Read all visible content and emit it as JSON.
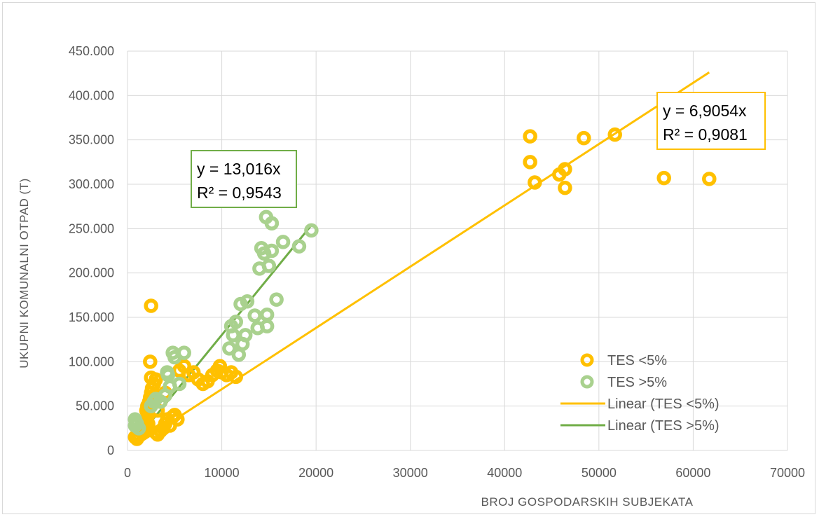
{
  "chart_data": {
    "type": "scatter",
    "title": "",
    "xlabel": "BROJ GOSPODARSKIH SUBJEKATA",
    "ylabel": "UKUPNI KOMUNALNI OTPAD (T)",
    "xlim": [
      0,
      70000
    ],
    "ylim": [
      0,
      450000
    ],
    "x_ticks": [
      0,
      10000,
      20000,
      30000,
      40000,
      50000,
      60000,
      70000
    ],
    "x_tick_labels": [
      "0",
      "10000",
      "20000",
      "30000",
      "40000",
      "50000",
      "60000",
      "70000"
    ],
    "y_ticks": [
      0,
      50000,
      100000,
      150000,
      200000,
      250000,
      300000,
      350000,
      400000,
      450000
    ],
    "y_tick_labels": [
      "0",
      "50.000",
      "100.000",
      "150.000",
      "200.000",
      "250.000",
      "300.000",
      "350.000",
      "400.000",
      "450.000"
    ],
    "grid": true,
    "legend_position": "bottom-right inside plot",
    "series": [
      {
        "name": "TES <5%",
        "color": "#ffc000",
        "points": [
          [
            800,
            15000
          ],
          [
            1000,
            13000
          ],
          [
            1200,
            17000
          ],
          [
            1500,
            20000
          ],
          [
            1800,
            22000
          ],
          [
            2000,
            25000
          ],
          [
            2200,
            30000
          ],
          [
            1600,
            28000
          ],
          [
            2000,
            35000
          ],
          [
            2200,
            40000
          ],
          [
            2000,
            45000
          ],
          [
            2100,
            50000
          ],
          [
            2300,
            55000
          ],
          [
            2400,
            60000
          ],
          [
            2500,
            65000
          ],
          [
            2600,
            70000
          ],
          [
            2800,
            75000
          ],
          [
            3000,
            80000
          ],
          [
            3200,
            45000
          ],
          [
            3000,
            20000
          ],
          [
            3200,
            18000
          ],
          [
            3500,
            22000
          ],
          [
            3800,
            25000
          ],
          [
            4000,
            30000
          ],
          [
            4200,
            35000
          ],
          [
            4500,
            28000
          ],
          [
            4800,
            38000
          ],
          [
            5000,
            40000
          ],
          [
            5300,
            35000
          ],
          [
            5500,
            90000
          ],
          [
            6000,
            95000
          ],
          [
            6500,
            85000
          ],
          [
            7000,
            88000
          ],
          [
            7500,
            80000
          ],
          [
            8000,
            75000
          ],
          [
            8500,
            78000
          ],
          [
            9000,
            85000
          ],
          [
            9500,
            90000
          ],
          [
            9800,
            95000
          ],
          [
            10000,
            88000
          ],
          [
            10500,
            85000
          ],
          [
            11000,
            88000
          ],
          [
            11500,
            83000
          ],
          [
            3500,
            55000
          ],
          [
            4000,
            65000
          ],
          [
            2500,
            82000
          ],
          [
            2400,
            100000
          ],
          [
            2500,
            163000
          ],
          [
            42700,
            354000
          ],
          [
            42700,
            325000
          ],
          [
            43200,
            302000
          ],
          [
            45800,
            311000
          ],
          [
            46400,
            317000
          ],
          [
            46400,
            296000
          ],
          [
            48400,
            352000
          ],
          [
            51700,
            356000
          ],
          [
            56900,
            307000
          ],
          [
            61700,
            306000
          ]
        ]
      },
      {
        "name": "TES >5%",
        "color": "#a9d18e",
        "points": [
          [
            800,
            28000
          ],
          [
            800,
            35000
          ],
          [
            900,
            32000
          ],
          [
            1000,
            30000
          ],
          [
            1200,
            25000
          ],
          [
            2500,
            50000
          ],
          [
            2800,
            55000
          ],
          [
            3000,
            58000
          ],
          [
            3500,
            55000
          ],
          [
            4000,
            62000
          ],
          [
            4200,
            88000
          ],
          [
            4300,
            85000
          ],
          [
            4500,
            72000
          ],
          [
            4800,
            110000
          ],
          [
            5000,
            105000
          ],
          [
            5500,
            75000
          ],
          [
            6000,
            110000
          ],
          [
            10800,
            115000
          ],
          [
            11000,
            140000
          ],
          [
            11200,
            130000
          ],
          [
            11500,
            145000
          ],
          [
            11800,
            108000
          ],
          [
            12000,
            165000
          ],
          [
            12200,
            120000
          ],
          [
            12500,
            130000
          ],
          [
            12700,
            168000
          ],
          [
            13500,
            152000
          ],
          [
            13800,
            138000
          ],
          [
            14000,
            205000
          ],
          [
            14200,
            228000
          ],
          [
            14500,
            222000
          ],
          [
            14700,
            263000
          ],
          [
            14800,
            153000
          ],
          [
            14800,
            140000
          ],
          [
            15000,
            208000
          ],
          [
            15300,
            225000
          ],
          [
            15300,
            256000
          ],
          [
            15800,
            170000
          ],
          [
            16500,
            235000
          ],
          [
            18200,
            230000
          ],
          [
            19500,
            248000
          ]
        ]
      }
    ],
    "trendlines": [
      {
        "name": "Linear (TES <5%)",
        "color": "#ffc000",
        "slope": 6.9054,
        "x_range": [
          1000,
          61700
        ],
        "equation": "y = 6,9054x",
        "r2": "R² = 0,9081"
      },
      {
        "name": "Linear (TES >5%)",
        "color": "#70ad47",
        "slope": 13.016,
        "x_range": [
          1000,
          19500
        ],
        "equation": "y = 13,016x",
        "r2": "R² = 0,9543"
      }
    ]
  }
}
